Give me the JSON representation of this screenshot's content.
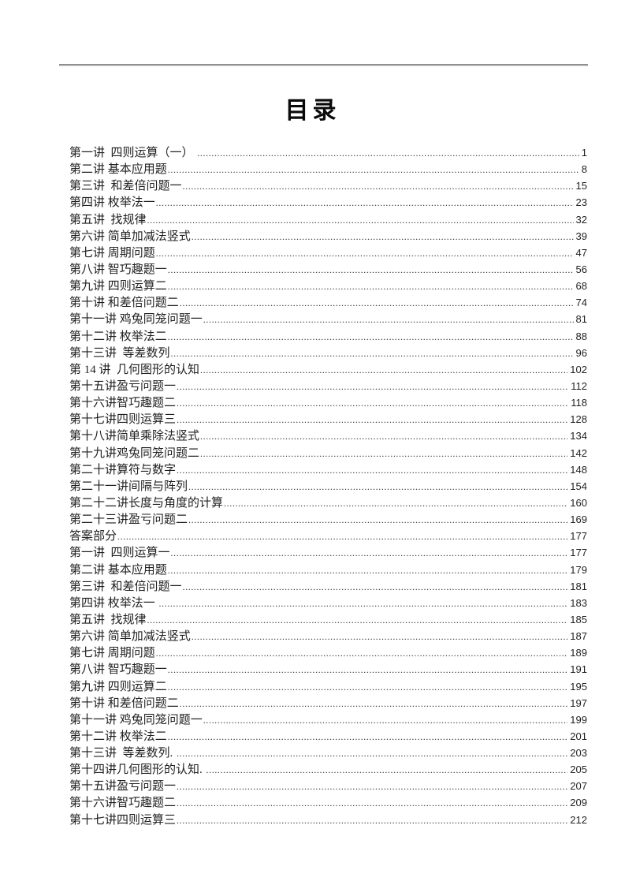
{
  "page": {
    "title": "目录"
  },
  "toc": {
    "entries": [
      {
        "label": "第一讲  四则运算（一） ",
        "page": "1"
      },
      {
        "label": "第二讲 基本应用题",
        "page": "8"
      },
      {
        "label": "第三讲  和差倍问题一",
        "page": "15"
      },
      {
        "label": "第四讲 枚举法一",
        "page": "23"
      },
      {
        "label": "第五讲  找规律",
        "page": "32"
      },
      {
        "label": "第六讲 简单加减法竖式",
        "page": "39"
      },
      {
        "label": "第七讲 周期问题",
        "page": "47"
      },
      {
        "label": "第八讲 智巧趣题一",
        "page": "56"
      },
      {
        "label": "第九讲 四则运算二",
        "page": "68"
      },
      {
        "label": "第十讲 和差倍问题二",
        "page": "74"
      },
      {
        "label": "第十一讲 鸡兔同笼问题一",
        "page": "81"
      },
      {
        "label": "第十二讲 枚举法二",
        "page": "88"
      },
      {
        "label": "第十三讲  等差数列",
        "page": "96"
      },
      {
        "label": "第 14 讲  几何图形的认知",
        "page": "102"
      },
      {
        "label": "第十五讲盈亏问题一",
        "page": "112"
      },
      {
        "label": "第十六讲智巧趣题二",
        "page": "118"
      },
      {
        "label": "第十七讲四则运算三",
        "page": "128"
      },
      {
        "label": "第十八讲简单乘除法竖式",
        "page": "134"
      },
      {
        "label": "第十九讲鸡兔同笼问题二",
        "page": "142"
      },
      {
        "label": "第二十讲算符与数字",
        "page": "148"
      },
      {
        "label": "第二十一讲间隔与阵列",
        "page": "154"
      },
      {
        "label": "第二十二讲长度与角度的计算",
        "page": "160"
      },
      {
        "label": "第二十三讲盈亏问题二",
        "page": "169"
      },
      {
        "label": "答案部分",
        "page": "177"
      },
      {
        "label": "第一讲  四则运算一",
        "page": "177"
      },
      {
        "label": "第二讲 基本应用题",
        "page": "179"
      },
      {
        "label": "第三讲  和差倍问题一",
        "page": "181"
      },
      {
        "label": "第四讲 枚举法一 ",
        "page": "183"
      },
      {
        "label": "第五讲  找规律",
        "page": "185"
      },
      {
        "label": "第六讲 简单加减法竖式",
        "page": "187"
      },
      {
        "label": "第七讲 周期问题",
        "page": "189"
      },
      {
        "label": "第八讲 智巧趣题一",
        "page": "191"
      },
      {
        "label": "第九讲 四则运算二",
        "page": "195"
      },
      {
        "label": "第十讲 和差倍问题二",
        "page": "197"
      },
      {
        "label": "第十一讲 鸡兔同笼问题一",
        "page": "199"
      },
      {
        "label": "第十二讲 枚举法二",
        "page": "201"
      },
      {
        "label": "第十三讲  等差数列. ",
        "page": "203"
      },
      {
        "label": "第十四讲几何图形的认知. ",
        "page": "205"
      },
      {
        "label": "第十五讲盈亏问题一",
        "page": "207"
      },
      {
        "label": "第十六讲智巧趣题二",
        "page": "209"
      },
      {
        "label": "第十七讲四则运算三",
        "page": "212"
      }
    ]
  }
}
